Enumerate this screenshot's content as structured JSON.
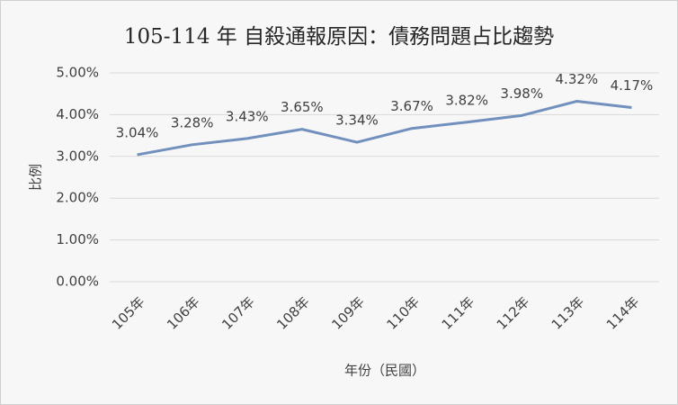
{
  "chart_data": {
    "type": "line",
    "title": "105-114 年 自殺通報原因：債務問題占比趨勢",
    "x_label": "年份（民國）",
    "y_label": "比例",
    "categories": [
      "105年",
      "106年",
      "107年",
      "108年",
      "109年",
      "110年",
      "111年",
      "112年",
      "113年",
      "114年"
    ],
    "series": [
      {
        "name": "比例",
        "color": "#7190bd",
        "values": [
          3.04,
          3.28,
          3.43,
          3.65,
          3.34,
          3.67,
          3.82,
          3.98,
          4.32,
          4.17
        ],
        "value_labels": [
          "3.04%",
          "3.28%",
          "3.43%",
          "3.65%",
          "3.34%",
          "3.67%",
          "3.82%",
          "3.98%",
          "4.32%",
          "4.17%"
        ]
      }
    ],
    "ylim": [
      0,
      5
    ],
    "yticks": [
      {
        "value": 0,
        "label": "0.00%"
      },
      {
        "value": 1,
        "label": "1.00%"
      },
      {
        "value": 2,
        "label": "2.00%"
      },
      {
        "value": 3,
        "label": "3.00%"
      },
      {
        "value": 4,
        "label": "4.00%"
      },
      {
        "value": 5,
        "label": "5.00%"
      }
    ],
    "grid": true
  }
}
